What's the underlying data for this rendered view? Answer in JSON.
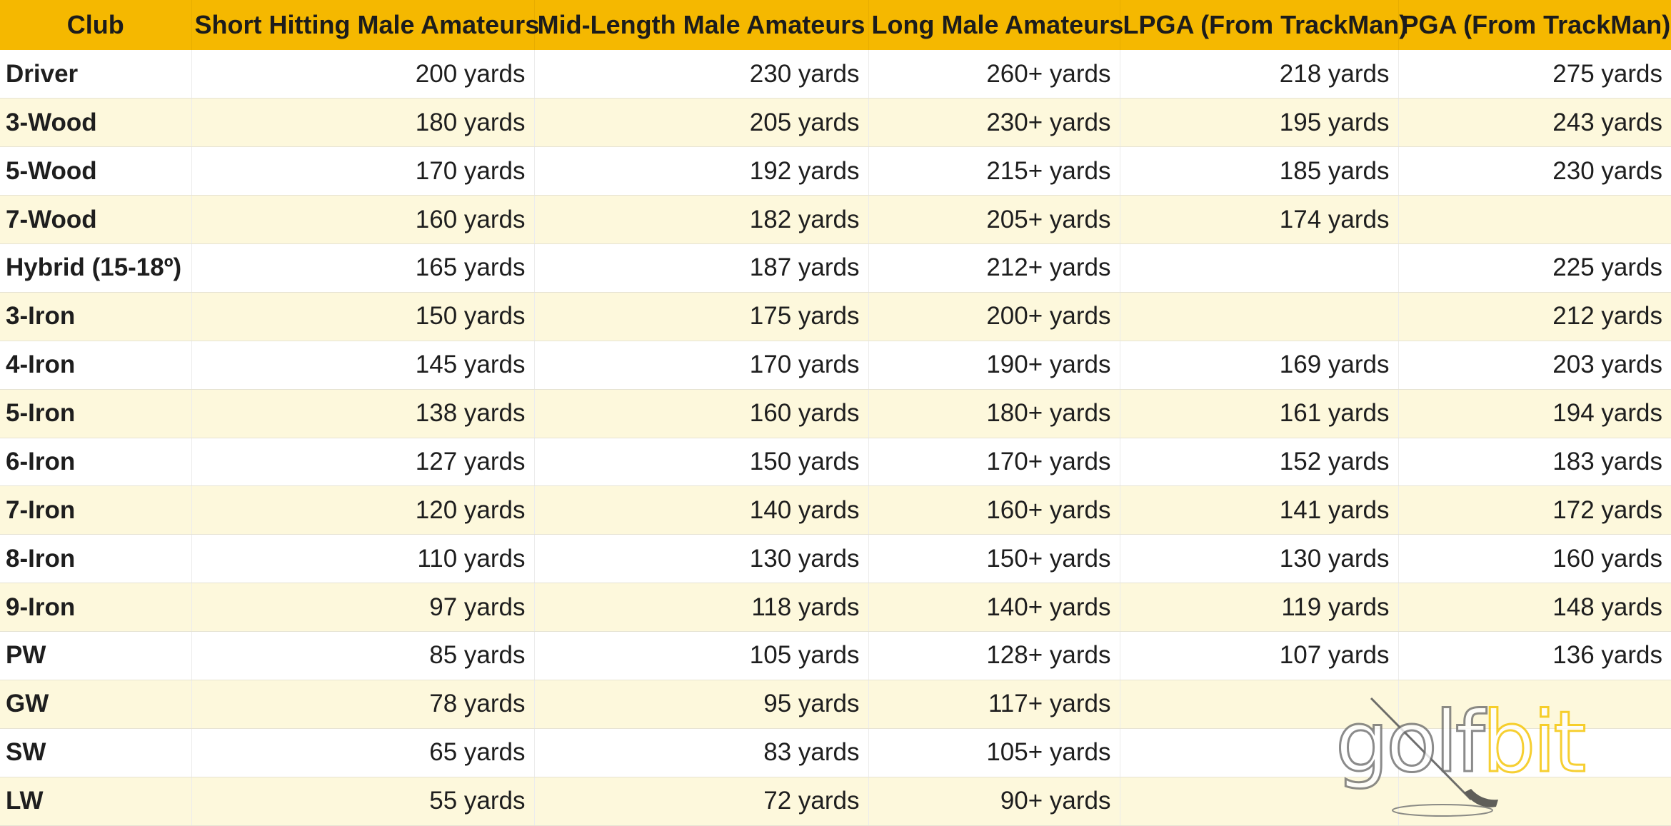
{
  "chart_data": {
    "type": "table",
    "columns": [
      "Club",
      "Short Hitting Male Amateurs",
      "Mid-Length Male Amateurs",
      "Long Male Amateurs",
      "LPGA (From TrackMan)",
      "PGA (From TrackMan)"
    ],
    "rows": [
      [
        "Driver",
        "200 yards",
        "230 yards",
        "260+ yards",
        "218 yards",
        "275 yards"
      ],
      [
        "3-Wood",
        "180 yards",
        "205 yards",
        "230+ yards",
        "195 yards",
        "243 yards"
      ],
      [
        "5-Wood",
        "170 yards",
        "192 yards",
        "215+ yards",
        "185 yards",
        "230 yards"
      ],
      [
        "7-Wood",
        "160 yards",
        "182 yards",
        "205+ yards",
        "174 yards",
        ""
      ],
      [
        "Hybrid (15-18º)",
        "165 yards",
        "187 yards",
        "212+ yards",
        "",
        "225 yards"
      ],
      [
        "3-Iron",
        "150 yards",
        "175 yards",
        "200+ yards",
        "",
        "212 yards"
      ],
      [
        "4-Iron",
        "145 yards",
        "170 yards",
        "190+ yards",
        "169 yards",
        "203 yards"
      ],
      [
        "5-Iron",
        "138 yards",
        "160 yards",
        "180+ yards",
        "161 yards",
        "194 yards"
      ],
      [
        "6-Iron",
        "127 yards",
        "150 yards",
        "170+ yards",
        "152 yards",
        "183 yards"
      ],
      [
        "7-Iron",
        "120 yards",
        "140 yards",
        "160+ yards",
        "141 yards",
        "172 yards"
      ],
      [
        "8-Iron",
        "110 yards",
        "130 yards",
        "150+ yards",
        "130 yards",
        "160 yards"
      ],
      [
        "9-Iron",
        "97 yards",
        "118 yards",
        "140+ yards",
        "119 yards",
        "148 yards"
      ],
      [
        "PW",
        "85 yards",
        "105 yards",
        "128+ yards",
        "107 yards",
        "136 yards"
      ],
      [
        "GW",
        "78 yards",
        "95 yards",
        "117+ yards",
        "",
        ""
      ],
      [
        "SW",
        "65 yards",
        "83 yards",
        "105+ yards",
        "",
        ""
      ],
      [
        "LW",
        "55 yards",
        "72 yards",
        "90+ yards",
        "",
        ""
      ]
    ]
  },
  "watermark": {
    "text_golf": "golf",
    "text_bit": "bit"
  },
  "colors": {
    "header_bg": "#f5b800",
    "stripe_bg": "#fdf8dc",
    "logo_gray": "#6f6f6f",
    "logo_yellow": "#f5c400"
  }
}
